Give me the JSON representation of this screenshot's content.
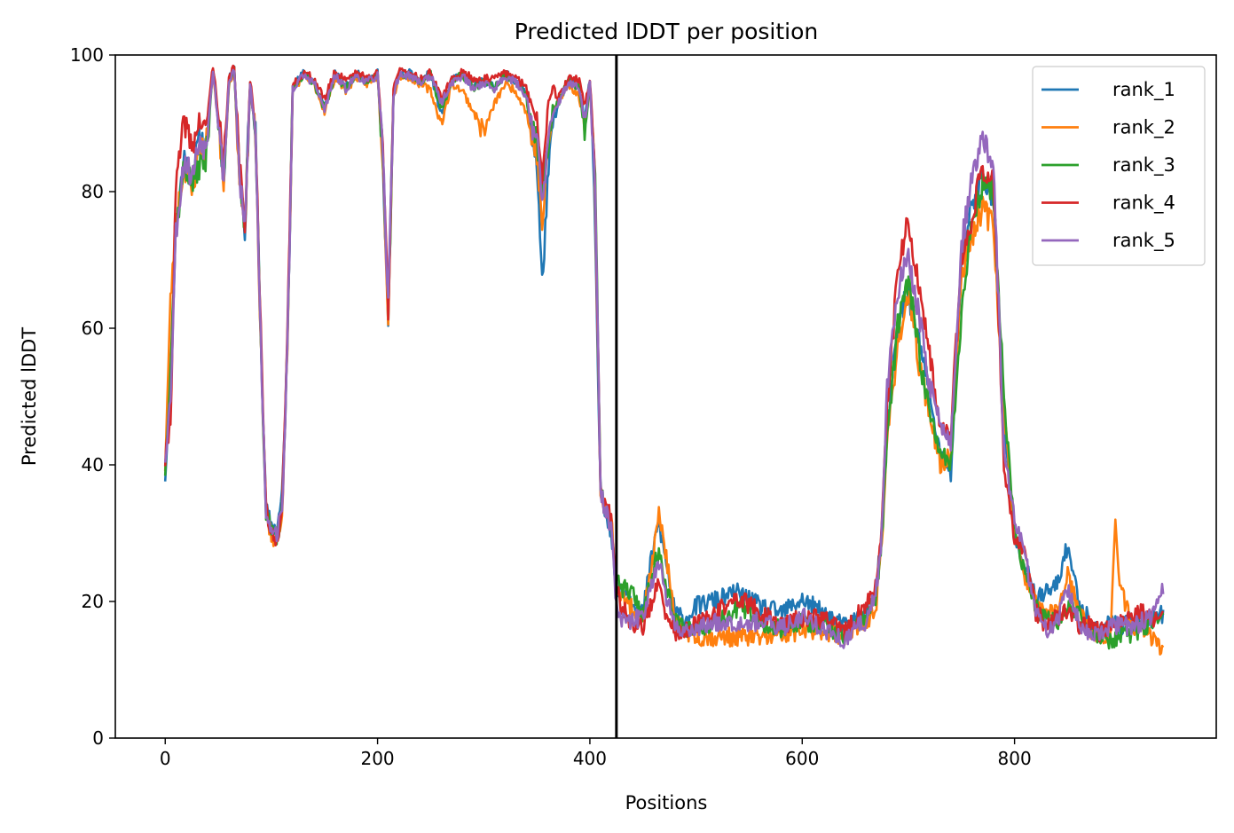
{
  "chart_data": {
    "type": "line",
    "title": "Predicted lDDT per position",
    "xlabel": "Positions",
    "ylabel": "Predicted lDDT",
    "xlim": [
      -47,
      990
    ],
    "ylim": [
      0,
      100
    ],
    "xticks": [
      0,
      200,
      400,
      600,
      800
    ],
    "yticks": [
      0,
      20,
      40,
      60,
      80,
      100
    ],
    "grid": false,
    "legend_position": "top-right",
    "vline_x": 425,
    "vline_color": "#000000",
    "series": [
      {
        "name": "rank_1",
        "color": "#1f77b4",
        "offset": 0.3,
        "seed": 11,
        "x": [
          0,
          5,
          10,
          18,
          25,
          33,
          38,
          45,
          50,
          55,
          60,
          65,
          70,
          75,
          80,
          85,
          90,
          95,
          100,
          105,
          110,
          115,
          120,
          130,
          140,
          150,
          160,
          170,
          180,
          190,
          200,
          205,
          210,
          215,
          220,
          230,
          240,
          250,
          260,
          270,
          280,
          290,
          300,
          310,
          320,
          330,
          340,
          345,
          350,
          355,
          360,
          365,
          370,
          380,
          390,
          395,
          400,
          403,
          405,
          410,
          415,
          420,
          425,
          430,
          440,
          450,
          460,
          465,
          470,
          480,
          490,
          500,
          520,
          540,
          560,
          580,
          600,
          620,
          640,
          650,
          660,
          670,
          675,
          680,
          690,
          700,
          710,
          720,
          730,
          740,
          750,
          760,
          770,
          780,
          790,
          800,
          810,
          820,
          830,
          840,
          850,
          860,
          870,
          880,
          890,
          900,
          910,
          920,
          930,
          940
        ],
        "y": [
          38,
          52,
          75,
          85,
          82,
          88,
          86,
          98,
          90,
          82,
          96,
          98,
          82,
          74,
          96,
          88,
          58,
          33,
          31,
          30,
          35,
          56,
          95,
          97,
          96,
          92,
          97,
          95,
          97,
          96,
          97,
          85,
          60,
          94,
          97,
          97,
          96,
          97,
          91,
          96,
          97,
          95,
          96,
          95,
          97,
          96,
          94,
          88,
          84,
          66,
          80,
          90,
          92,
          96,
          95,
          90,
          96,
          85,
          72,
          36,
          33,
          30,
          21,
          22,
          20,
          18,
          28,
          31,
          27,
          18,
          17,
          19,
          20,
          21,
          19,
          18,
          20,
          18,
          16,
          17,
          18,
          22,
          30,
          45,
          60,
          65,
          58,
          50,
          41,
          38,
          70,
          78,
          82,
          79,
          45,
          30,
          25,
          20,
          21,
          22,
          28,
          20,
          17,
          15,
          17,
          16,
          17,
          16,
          17,
          18
        ]
      },
      {
        "name": "rank_2",
        "color": "#ff7f0e",
        "offset": -0.2,
        "seed": 23,
        "x": [
          0,
          5,
          10,
          18,
          25,
          33,
          38,
          45,
          50,
          55,
          60,
          65,
          70,
          75,
          80,
          85,
          90,
          95,
          100,
          105,
          110,
          115,
          120,
          130,
          140,
          150,
          160,
          170,
          180,
          190,
          200,
          205,
          210,
          215,
          220,
          230,
          240,
          250,
          260,
          270,
          280,
          290,
          300,
          310,
          320,
          330,
          340,
          345,
          350,
          355,
          360,
          365,
          370,
          380,
          390,
          395,
          400,
          403,
          405,
          410,
          415,
          420,
          425,
          430,
          440,
          450,
          460,
          465,
          470,
          480,
          490,
          500,
          520,
          540,
          560,
          580,
          600,
          620,
          640,
          650,
          660,
          670,
          675,
          680,
          690,
          700,
          710,
          720,
          730,
          740,
          750,
          760,
          770,
          780,
          790,
          800,
          810,
          820,
          830,
          840,
          850,
          860,
          870,
          880,
          890,
          895,
          900,
          910,
          920,
          930,
          940
        ],
        "y": [
          40,
          64,
          76,
          84,
          80,
          87,
          86,
          98,
          90,
          82,
          96,
          98,
          82,
          74,
          96,
          88,
          58,
          33,
          30,
          29,
          33,
          56,
          95,
          97,
          96,
          92,
          97,
          95,
          97,
          96,
          97,
          85,
          62,
          94,
          97,
          97,
          96,
          95,
          90,
          96,
          95,
          92,
          89,
          93,
          96,
          95,
          92,
          88,
          86,
          75,
          85,
          92,
          93,
          96,
          94,
          90,
          96,
          87,
          80,
          37,
          34,
          33,
          22,
          21,
          19,
          18,
          27,
          33,
          29,
          17,
          16,
          15,
          15,
          15,
          15,
          15,
          16,
          16,
          15,
          16,
          17,
          20,
          28,
          44,
          58,
          65,
          55,
          48,
          40,
          42,
          68,
          74,
          78,
          75,
          48,
          30,
          24,
          20,
          18,
          19,
          24,
          19,
          16,
          15,
          15,
          31,
          22,
          17,
          16,
          15,
          13
        ]
      },
      {
        "name": "rank_3",
        "color": "#2ca02c",
        "offset": 0.1,
        "seed": 37,
        "x": [
          0,
          5,
          10,
          18,
          25,
          33,
          38,
          45,
          50,
          55,
          60,
          65,
          70,
          75,
          80,
          85,
          90,
          95,
          100,
          105,
          110,
          115,
          120,
          130,
          140,
          150,
          160,
          170,
          180,
          190,
          200,
          205,
          210,
          215,
          220,
          230,
          240,
          250,
          260,
          270,
          280,
          290,
          300,
          310,
          320,
          330,
          340,
          345,
          350,
          355,
          360,
          365,
          370,
          380,
          390,
          395,
          400,
          403,
          405,
          410,
          415,
          420,
          425,
          430,
          440,
          450,
          460,
          465,
          470,
          480,
          490,
          500,
          520,
          540,
          560,
          580,
          600,
          620,
          640,
          650,
          660,
          670,
          675,
          680,
          690,
          700,
          710,
          720,
          730,
          740,
          750,
          760,
          770,
          780,
          790,
          800,
          810,
          820,
          830,
          840,
          850,
          860,
          870,
          880,
          890,
          900,
          910,
          920,
          930,
          940
        ],
        "y": [
          39,
          55,
          74,
          84,
          81,
          84,
          84,
          98,
          90,
          82,
          96,
          98,
          82,
          74,
          96,
          88,
          58,
          33,
          30,
          29,
          33,
          56,
          95,
          97,
          96,
          92,
          97,
          95,
          97,
          96,
          97,
          85,
          61,
          94,
          97,
          97,
          96,
          97,
          92,
          96,
          97,
          95,
          96,
          95,
          97,
          96,
          94,
          89,
          88,
          80,
          85,
          92,
          93,
          96,
          95,
          88,
          96,
          88,
          82,
          36,
          33,
          30,
          23,
          22,
          21,
          18,
          25,
          27,
          24,
          17,
          16,
          16,
          17,
          19,
          17,
          16,
          17,
          16,
          15,
          16,
          18,
          21,
          29,
          44,
          60,
          67,
          56,
          48,
          42,
          40,
          62,
          76,
          81,
          80,
          50,
          30,
          24,
          19,
          17,
          17,
          19,
          18,
          16,
          15,
          14,
          15,
          15,
          16,
          17,
          17
        ]
      },
      {
        "name": "rank_4",
        "color": "#d62728",
        "offset": 0.5,
        "seed": 41,
        "x": [
          0,
          5,
          10,
          18,
          25,
          33,
          38,
          45,
          50,
          55,
          60,
          65,
          70,
          75,
          80,
          85,
          90,
          95,
          100,
          105,
          110,
          115,
          120,
          130,
          140,
          150,
          160,
          170,
          180,
          190,
          200,
          205,
          210,
          215,
          220,
          230,
          240,
          250,
          260,
          270,
          280,
          290,
          300,
          310,
          320,
          330,
          340,
          345,
          350,
          355,
          360,
          365,
          370,
          380,
          390,
          395,
          400,
          403,
          405,
          410,
          415,
          420,
          425,
          430,
          440,
          450,
          460,
          465,
          470,
          480,
          490,
          500,
          520,
          540,
          560,
          580,
          600,
          620,
          640,
          650,
          660,
          670,
          675,
          680,
          690,
          700,
          710,
          720,
          730,
          740,
          750,
          760,
          770,
          780,
          790,
          800,
          810,
          820,
          830,
          840,
          850,
          860,
          870,
          880,
          890,
          900,
          910,
          920,
          930,
          940
        ],
        "y": [
          40,
          46,
          80,
          90,
          86,
          90,
          88,
          98,
          91,
          83,
          96,
          98,
          83,
          75,
          96,
          89,
          59,
          33,
          29,
          28,
          34,
          57,
          95,
          97,
          96,
          93,
          97,
          96,
          97,
          96,
          97,
          86,
          62,
          95,
          97,
          97,
          96,
          97,
          93,
          96,
          97,
          96,
          96,
          96,
          97,
          96,
          95,
          92,
          90,
          82,
          92,
          95,
          93,
          96,
          96,
          92,
          96,
          88,
          80,
          36,
          33,
          32,
          21,
          19,
          16,
          16,
          20,
          22,
          18,
          15,
          15,
          16,
          18,
          20,
          18,
          16,
          17,
          17,
          15,
          17,
          19,
          22,
          30,
          48,
          68,
          75,
          65,
          55,
          45,
          44,
          70,
          76,
          83,
          82,
          40,
          28,
          27,
          18,
          16,
          17,
          18,
          16,
          16,
          15,
          16,
          17,
          17,
          18,
          17,
          19
        ]
      },
      {
        "name": "rank_5",
        "color": "#9467bd",
        "offset": 0.0,
        "seed": 53,
        "x": [
          0,
          5,
          10,
          18,
          25,
          33,
          38,
          45,
          50,
          55,
          60,
          65,
          70,
          75,
          80,
          85,
          90,
          95,
          100,
          105,
          110,
          115,
          120,
          130,
          140,
          150,
          160,
          170,
          180,
          190,
          200,
          205,
          210,
          215,
          220,
          230,
          240,
          250,
          260,
          270,
          280,
          290,
          300,
          310,
          320,
          330,
          340,
          345,
          350,
          355,
          360,
          365,
          370,
          380,
          390,
          395,
          400,
          403,
          405,
          410,
          415,
          420,
          425,
          430,
          440,
          450,
          460,
          465,
          470,
          480,
          490,
          500,
          520,
          540,
          560,
          580,
          600,
          620,
          640,
          650,
          660,
          670,
          675,
          680,
          690,
          700,
          710,
          720,
          730,
          740,
          750,
          760,
          770,
          780,
          790,
          800,
          810,
          820,
          830,
          840,
          850,
          860,
          870,
          880,
          890,
          900,
          910,
          920,
          930,
          940
        ],
        "y": [
          41,
          50,
          74,
          85,
          82,
          88,
          86,
          98,
          90,
          82,
          96,
          98,
          82,
          74,
          96,
          88,
          58,
          33,
          31,
          30,
          33,
          56,
          95,
          97,
          96,
          92,
          97,
          95,
          97,
          96,
          97,
          85,
          63,
          94,
          97,
          97,
          96,
          97,
          93,
          96,
          97,
          95,
          96,
          95,
          97,
          96,
          94,
          90,
          88,
          78,
          86,
          91,
          93,
          96,
          95,
          90,
          96,
          86,
          80,
          36,
          33,
          31,
          19,
          17,
          17,
          18,
          24,
          26,
          22,
          16,
          16,
          16,
          17,
          17,
          17,
          16,
          18,
          16,
          14,
          16,
          17,
          22,
          30,
          52,
          66,
          70,
          62,
          52,
          46,
          43,
          72,
          82,
          88,
          84,
          42,
          32,
          27,
          18,
          16,
          17,
          22,
          17,
          15,
          15,
          16,
          17,
          16,
          17,
          18,
          22
        ]
      }
    ]
  }
}
